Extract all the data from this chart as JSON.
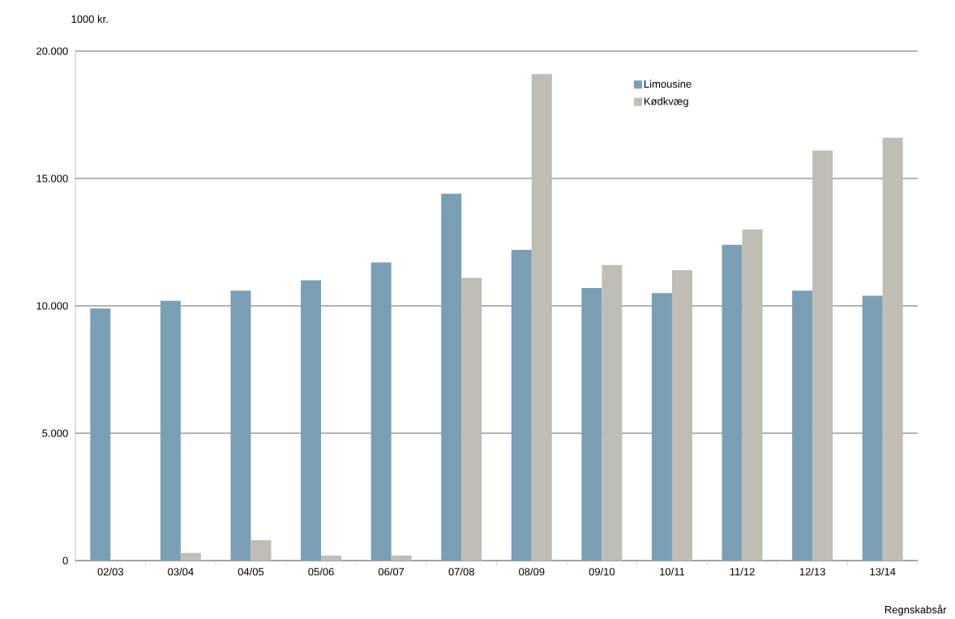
{
  "chart_data": {
    "type": "bar",
    "ylabel": "1000 kr.",
    "xlabel": "Regnskabsår",
    "categories": [
      "02/03",
      "03/04",
      "04/05",
      "05/06",
      "06/07",
      "07/08",
      "08/09",
      "09/10",
      "10/11",
      "11/12",
      "12/13",
      "13/14"
    ],
    "series": [
      {
        "name": "Limousine",
        "color": "#7a9fb5",
        "values": [
          9900,
          10200,
          10600,
          11000,
          11700,
          14400,
          12200,
          10700,
          10500,
          12400,
          10600,
          10400
        ]
      },
      {
        "name": "Kødkvæg",
        "color": "#bfbdb4",
        "values": [
          null,
          300,
          800,
          200,
          200,
          11100,
          19100,
          11600,
          11400,
          13000,
          16100,
          16600
        ]
      }
    ],
    "ylim": [
      0,
      20000
    ],
    "yticks": [
      {
        "value": 0,
        "label": "0"
      },
      {
        "value": 5000,
        "label": "5.000"
      },
      {
        "value": 10000,
        "label": "10.000"
      },
      {
        "value": 15000,
        "label": "15.000"
      },
      {
        "value": 20000,
        "label": "20.000"
      }
    ],
    "grid": "y",
    "legend": "top right"
  }
}
